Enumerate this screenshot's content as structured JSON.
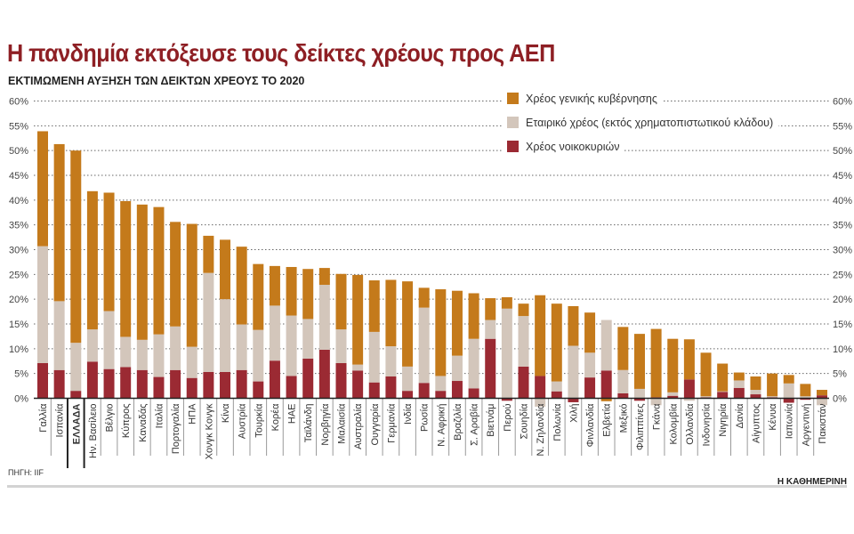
{
  "title": "Η πανδημία εκτόξευσε τους δείκτες χρέους προς ΑΕΠ",
  "subtitle": "ΕΚΤΙΜΩΜΕΝΗ ΑΥΞΗΣΗ ΤΩΝ ΔΕΙΚΤΩΝ ΧΡΕΟΥΣ ΤΟ 2020",
  "source": "ΠΗΓΗ: IIF",
  "brand": "Η ΚΑΘΗΜΕΡΙΝΗ",
  "chart_data": {
    "type": "bar",
    "stacked": true,
    "title": "Η πανδημία εκτόξευσε τους δείκτες χρέους προς ΑΕΠ",
    "subtitle": "ΕΚΤΙΜΩΜΕΝΗ ΑΥΞΗΣΗ ΤΩΝ ΔΕΙΚΤΩΝ ΧΡΕΟΥΣ ΤΟ 2020",
    "xlabel": "",
    "ylabel": "",
    "ylim": [
      0,
      60
    ],
    "yticks": [
      "0%",
      "5%",
      "10%",
      "15%",
      "20%",
      "25%",
      "30%",
      "35%",
      "40%",
      "45%",
      "50%",
      "55%",
      "60%"
    ],
    "y_axis_both_sides": true,
    "grid": "horizontal dotted",
    "legend_position": "top-right",
    "highlight_category": "ΕΛΛΑΔΑ",
    "categories": [
      "Γαλλία",
      "Ισπανία",
      "ΕΛΛΑΔΑ",
      "Ην. Βασίλειο",
      "Βέλγιο",
      "Κύπρος",
      "Καναδάς",
      "Ιταλία",
      "Πορτογαλία",
      "ΗΠΑ",
      "Χονγκ Κονγκ",
      "Κίνα",
      "Αυστρία",
      "Τουρκία",
      "Κορέα",
      "ΗΑΕ",
      "Ταϊλάνδη",
      "Νορβηγία",
      "Μαλαισία",
      "Αυστραλία",
      "Ουγγαρία",
      "Γερμανία",
      "Ινδία",
      "Ρωσία",
      "Ν. Αφρική",
      "Βραζιλία",
      "Σ. Αραβία",
      "Βιετνάμ",
      "Περού",
      "Σουηδία",
      "Ν. Ζηλανδία",
      "Πολωνία",
      "Χιλή",
      "Φινλανδία",
      "Ελβετία",
      "Μεξικό",
      "Φιλιππίνες",
      "Γκάνα",
      "Κολομβία",
      "Ολλανδία",
      "Ινδονησία",
      "Νιγηρία",
      "Δανία",
      "Αίγυπτος",
      "Κένυα",
      "Ιαπωνία",
      "Αργεντινή",
      "Πακιστάν"
    ],
    "series": [
      {
        "name": "Χρέος νοικοκυριών",
        "color": "#9b2a33",
        "values": [
          7.1,
          5.7,
          1.5,
          7.4,
          5.9,
          6.3,
          5.7,
          4.3,
          5.7,
          4.1,
          5.3,
          5.3,
          5.7,
          3.4,
          7.6,
          4.5,
          8.0,
          9.8,
          7.1,
          5.6,
          3.2,
          4.4,
          1.5,
          3.1,
          1.5,
          3.5,
          2.0,
          12.0,
          -0.5,
          6.4,
          4.5,
          1.4,
          -0.8,
          4.2,
          5.6,
          1.0,
          -0.5,
          0.2,
          0.5,
          3.8,
          0.2,
          1.3,
          2.1,
          0.8,
          0.2,
          -0.9,
          -0.3,
          0.6
        ]
      },
      {
        "name": "Εταιρικό χρέος (εκτός χρηματοπιστωτικού κλάδου)",
        "color": "#d3c6bb",
        "values": [
          23.6,
          13.9,
          9.7,
          6.5,
          11.7,
          6.1,
          6.1,
          8.6,
          8.8,
          6.3,
          20.0,
          14.7,
          9.2,
          10.4,
          11.1,
          12.2,
          8.0,
          13.1,
          6.8,
          1.2,
          10.2,
          6.1,
          4.9,
          15.2,
          3.0,
          5.1,
          10.0,
          3.8,
          18.1,
          10.2,
          -1.7,
          2.0,
          10.6,
          5.0,
          10.2,
          4.7,
          1.9,
          -1.4,
          0.7,
          -0.5,
          0.2,
          0.1,
          1.5,
          0.9,
          0.2,
          3.0,
          0.4,
          -1.4
        ]
      },
      {
        "name": "Χρέος γενικής κυβέρνησης",
        "color": "#c47a1b",
        "values": [
          23.2,
          31.7,
          38.8,
          27.9,
          23.9,
          27.4,
          27.3,
          25.7,
          21.1,
          24.8,
          7.5,
          12.0,
          15.7,
          13.3,
          8.0,
          9.8,
          10.1,
          3.4,
          11.2,
          18.1,
          10.4,
          13.4,
          17.2,
          4.0,
          17.5,
          13.1,
          9.2,
          4.4,
          2.3,
          2.5,
          16.3,
          15.7,
          8.0,
          8.1,
          -0.6,
          8.7,
          11.1,
          13.8,
          10.8,
          8.1,
          8.8,
          5.6,
          1.6,
          2.7,
          4.6,
          1.7,
          2.5,
          1.1
        ]
      }
    ]
  }
}
